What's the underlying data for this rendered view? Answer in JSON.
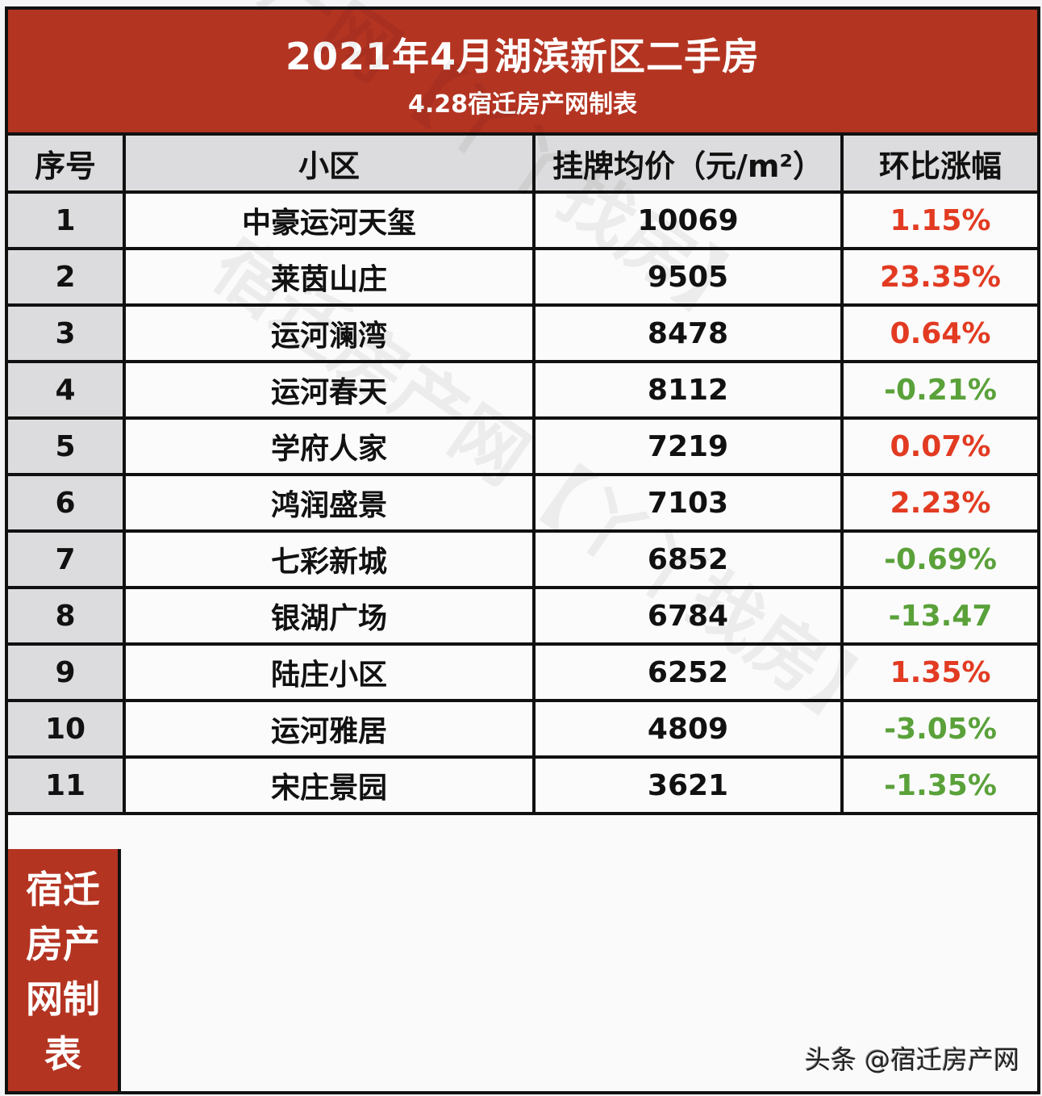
{
  "banner": {
    "title": "2021年4月湖滨新区二手房",
    "subtitle": "4.28宿迁房产网制表"
  },
  "table": {
    "headers": [
      "序号",
      "小区",
      "挂牌均价（元/m²）",
      "环比涨幅"
    ],
    "rows": [
      {
        "index": "1",
        "name": "中豪运河天玺",
        "price": "10069",
        "change": "1.15%",
        "trend": "up"
      },
      {
        "index": "2",
        "name": "莱茵山庄",
        "price": "9505",
        "change": "23.35%",
        "trend": "up"
      },
      {
        "index": "3",
        "name": "运河澜湾",
        "price": "8478",
        "change": "0.64%",
        "trend": "up"
      },
      {
        "index": "4",
        "name": "运河春天",
        "price": "8112",
        "change": "-0.21%",
        "trend": "down"
      },
      {
        "index": "5",
        "name": "学府人家",
        "price": "7219",
        "change": "0.07%",
        "trend": "up"
      },
      {
        "index": "6",
        "name": "鸿润盛景",
        "price": "7103",
        "change": "2.23%",
        "trend": "up"
      },
      {
        "index": "7",
        "name": "七彩新城",
        "price": "6852",
        "change": "-0.69%",
        "trend": "down"
      },
      {
        "index": "8",
        "name": "银湖广场",
        "price": "6784",
        "change": "-13.47",
        "trend": "down"
      },
      {
        "index": "9",
        "name": "陆庄小区",
        "price": "6252",
        "change": "1.35%",
        "trend": "up"
      },
      {
        "index": "10",
        "name": "运河雅居",
        "price": "4809",
        "change": "-3.05%",
        "trend": "down"
      },
      {
        "index": "11",
        "name": "宋庄景园",
        "price": "3621",
        "change": "-1.35%",
        "trend": "down"
      }
    ]
  },
  "side_label": [
    "宿迁",
    "房产",
    "网制",
    "表"
  ],
  "credit": "头条 @宿迁房产网",
  "watermark_text": "宿迁房产网【丫丫找房】",
  "colors": {
    "banner_red": "#b43422",
    "header_gray": "#dcdcde",
    "up_red": "#e23b22",
    "down_green": "#5aa13a"
  }
}
